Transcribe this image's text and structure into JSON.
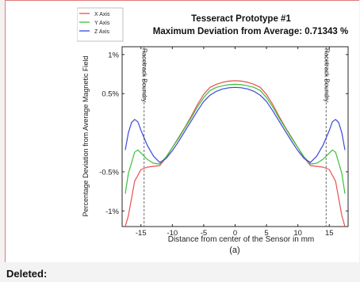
{
  "colors": {
    "x_axis": "#e8504f",
    "y_axis": "#3ac23a",
    "z_axis": "#3a48d8",
    "boundary": "#6b6b6b",
    "frame_border": "#e07a7a"
  },
  "chart_data": {
    "type": "line",
    "title": "Tesseract Prototype #1",
    "subtitle": "Maximum Deviation from Average: 0.71343 %",
    "xlabel": "Distance from center of the Sensor in mm",
    "ylabel": "Percentage Deviation from Average Magnetic Field",
    "xlim": [
      -18,
      18
    ],
    "ylim": [
      -1.2,
      1.1
    ],
    "x_ticks": [
      -15,
      -10,
      -5,
      0,
      5,
      10,
      15
    ],
    "x_tick_labels": [
      "-15",
      "-10",
      "-5",
      "0",
      "5",
      "10",
      "15"
    ],
    "y_ticks": [
      -1,
      -0.5,
      0.5,
      1
    ],
    "y_tick_labels": [
      "-1%",
      "-0.5%",
      "0.5%",
      "1%"
    ],
    "grid": false,
    "legend_position": "top-left",
    "annotations": [
      {
        "text": "Racetrack Boundry",
        "x": -14.5
      },
      {
        "text": "Racetrack Boundry",
        "x": 14.5
      }
    ],
    "boundary_lines_x": [
      -14.5,
      14.5
    ],
    "series": [
      {
        "name": "X Axis",
        "color_key": "x_axis",
        "points": [
          [
            -17.5,
            -1.2
          ],
          [
            -17,
            -1.06
          ],
          [
            -16,
            -0.62
          ],
          [
            -15,
            -0.47
          ],
          [
            -14,
            -0.44
          ],
          [
            -13,
            -0.43
          ],
          [
            -12,
            -0.42
          ],
          [
            -11,
            -0.32
          ],
          [
            -10,
            -0.19
          ],
          [
            -9,
            -0.06
          ],
          [
            -8,
            0.07
          ],
          [
            -7,
            0.21
          ],
          [
            -6,
            0.36
          ],
          [
            -5,
            0.49
          ],
          [
            -4,
            0.58
          ],
          [
            -3,
            0.62
          ],
          [
            -2,
            0.645
          ],
          [
            -1,
            0.66
          ],
          [
            0,
            0.665
          ],
          [
            1,
            0.66
          ],
          [
            2,
            0.645
          ],
          [
            3,
            0.62
          ],
          [
            4,
            0.58
          ],
          [
            5,
            0.49
          ],
          [
            6,
            0.36
          ],
          [
            7,
            0.21
          ],
          [
            8,
            0.07
          ],
          [
            9,
            -0.06
          ],
          [
            10,
            -0.19
          ],
          [
            11,
            -0.32
          ],
          [
            12,
            -0.42
          ],
          [
            13,
            -0.43
          ],
          [
            14,
            -0.44
          ],
          [
            15,
            -0.47
          ],
          [
            16,
            -0.62
          ],
          [
            17,
            -1.06
          ],
          [
            17.5,
            -1.2
          ]
        ]
      },
      {
        "name": "Y Axis",
        "color_key": "y_axis",
        "points": [
          [
            -17.5,
            -0.78
          ],
          [
            -17,
            -0.52
          ],
          [
            -16,
            -0.25
          ],
          [
            -15.5,
            -0.22
          ],
          [
            -15,
            -0.26
          ],
          [
            -14,
            -0.34
          ],
          [
            -13,
            -0.39
          ],
          [
            -12,
            -0.4
          ],
          [
            -11,
            -0.31
          ],
          [
            -10,
            -0.19
          ],
          [
            -9,
            -0.07
          ],
          [
            -8,
            0.06
          ],
          [
            -7,
            0.19
          ],
          [
            -6,
            0.33
          ],
          [
            -5,
            0.45
          ],
          [
            -4,
            0.54
          ],
          [
            -3,
            0.58
          ],
          [
            -2,
            0.6
          ],
          [
            -1,
            0.615
          ],
          [
            0,
            0.62
          ],
          [
            1,
            0.615
          ],
          [
            2,
            0.6
          ],
          [
            3,
            0.58
          ],
          [
            4,
            0.54
          ],
          [
            5,
            0.45
          ],
          [
            6,
            0.33
          ],
          [
            7,
            0.19
          ],
          [
            8,
            0.06
          ],
          [
            9,
            -0.07
          ],
          [
            10,
            -0.19
          ],
          [
            11,
            -0.31
          ],
          [
            12,
            -0.4
          ],
          [
            13,
            -0.39
          ],
          [
            14,
            -0.34
          ],
          [
            15,
            -0.26
          ],
          [
            15.5,
            -0.22
          ],
          [
            16,
            -0.25
          ],
          [
            17,
            -0.52
          ],
          [
            17.5,
            -0.78
          ]
        ]
      },
      {
        "name": "Z Axis",
        "color_key": "z_axis",
        "points": [
          [
            -17.5,
            -0.22
          ],
          [
            -17,
            0.0
          ],
          [
            -16.5,
            0.13
          ],
          [
            -16,
            0.17
          ],
          [
            -15.5,
            0.14
          ],
          [
            -15,
            0.03
          ],
          [
            -14,
            -0.16
          ],
          [
            -13,
            -0.3
          ],
          [
            -12,
            -0.38
          ],
          [
            -11,
            -0.33
          ],
          [
            -10,
            -0.23
          ],
          [
            -9,
            -0.11
          ],
          [
            -8,
            0.02
          ],
          [
            -7,
            0.15
          ],
          [
            -6,
            0.28
          ],
          [
            -5,
            0.4
          ],
          [
            -4,
            0.48
          ],
          [
            -3,
            0.53
          ],
          [
            -2,
            0.56
          ],
          [
            -1,
            0.575
          ],
          [
            0,
            0.58
          ],
          [
            1,
            0.575
          ],
          [
            2,
            0.56
          ],
          [
            3,
            0.53
          ],
          [
            4,
            0.48
          ],
          [
            5,
            0.4
          ],
          [
            6,
            0.28
          ],
          [
            7,
            0.15
          ],
          [
            8,
            0.02
          ],
          [
            9,
            -0.11
          ],
          [
            10,
            -0.23
          ],
          [
            11,
            -0.33
          ],
          [
            12,
            -0.38
          ],
          [
            13,
            -0.3
          ],
          [
            14,
            -0.16
          ],
          [
            15,
            0.03
          ],
          [
            15.5,
            0.14
          ],
          [
            16,
            0.17
          ],
          [
            16.5,
            0.13
          ],
          [
            17,
            0.0
          ],
          [
            17.5,
            -0.22
          ]
        ]
      }
    ]
  },
  "caption": "(a)",
  "deleted_label": "Deleted:"
}
